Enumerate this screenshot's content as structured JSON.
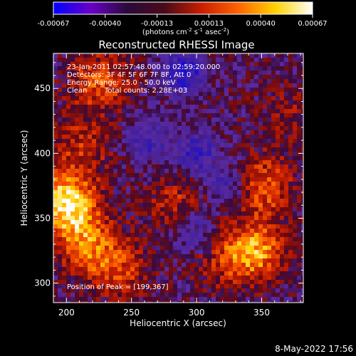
{
  "colorbar": {
    "tick_labels": [
      "-0.00067",
      "-0.00040",
      "-0.00013",
      "0.00013",
      "0.00040",
      "0.00067"
    ],
    "unit_main": "(photons cm",
    "unit_exp1": "-2",
    "unit_mid": " s",
    "unit_exp2": "-1",
    "unit_end": " asec",
    "unit_exp3": "-2",
    "unit_close": ")",
    "colors": [
      "#0000ff",
      "#6a00c8",
      "#2a0a3a",
      "#4a0a1a",
      "#c81e00",
      "#ff6400",
      "#ffd200",
      "#ffffff"
    ]
  },
  "chart_data": {
    "type": "heatmap",
    "title": "Reconstructed RHESSI Image",
    "xlabel": "Heliocentric X (arcsec)",
    "ylabel": "Heliocentric Y (arcsec)",
    "xlim": [
      190,
      382
    ],
    "ylim": [
      285,
      477
    ],
    "x_ticks": [
      200,
      250,
      300,
      350
    ],
    "y_ticks": [
      300,
      350,
      400,
      450
    ],
    "value_range": [
      -0.00067,
      0.00067
    ],
    "hotspots": [
      {
        "x": 200,
        "y": 362,
        "peak": 0.00067
      },
      {
        "x": 215,
        "y": 330,
        "peak": 0.0004
      },
      {
        "x": 212,
        "y": 405,
        "peak": 0.00025
      },
      {
        "x": 225,
        "y": 455,
        "peak": 0.00035
      },
      {
        "x": 240,
        "y": 310,
        "peak": 0.0003
      },
      {
        "x": 285,
        "y": 360,
        "peak": 0.00025
      },
      {
        "x": 320,
        "y": 318,
        "peak": 0.0002
      },
      {
        "x": 345,
        "y": 325,
        "peak": 0.0005
      },
      {
        "x": 350,
        "y": 375,
        "peak": 0.0004
      },
      {
        "x": 370,
        "y": 430,
        "peak": 0.00015
      }
    ],
    "coldspots": [
      {
        "x": 290,
        "y": 462,
        "peak": -0.00045
      },
      {
        "x": 262,
        "y": 410,
        "peak": -0.0003
      },
      {
        "x": 300,
        "y": 400,
        "peak": -0.00035
      },
      {
        "x": 325,
        "y": 375,
        "peak": -0.0003
      },
      {
        "x": 297,
        "y": 340,
        "peak": -0.0003
      }
    ],
    "annotations": {
      "time": "23-Jan-2011 02:57:48.000 to 02:59:20.000",
      "detectors": "Detectors: 3F 4F 5F 6F 7F 8F, Att 0",
      "energy": "Energy Range: 25.0 - 50.0 keV",
      "clean_label": "Clean",
      "total_counts": "Total counts: 2.28E+03",
      "peak_position": "Position of Peak = [199,367]"
    }
  },
  "footer": {
    "timestamp": "8-May-2022 17:56"
  }
}
